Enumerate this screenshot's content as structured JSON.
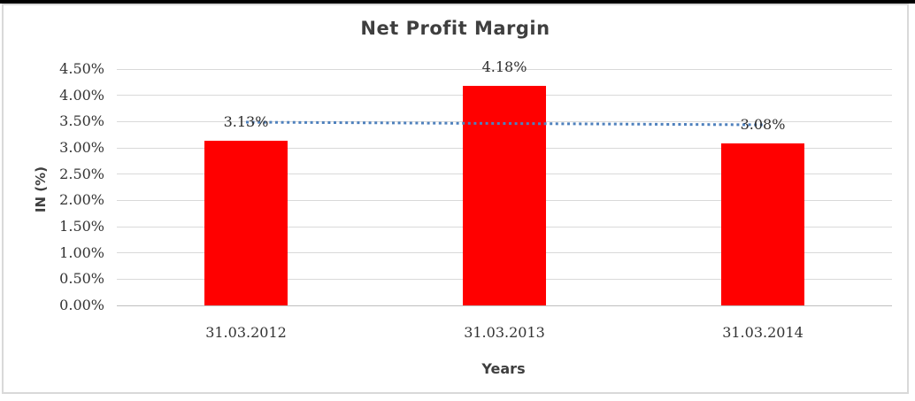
{
  "window": {
    "top_edge_color": "#000000",
    "chart_border_color": "#d9d9d9"
  },
  "chart_data": {
    "type": "bar",
    "title": "Net Profit Margin",
    "xlabel": "Years",
    "ylabel": "IN (%)",
    "categories": [
      "31.03.2012",
      "31.03.2013",
      "31.03.2014"
    ],
    "values": [
      3.13,
      4.18,
      3.08
    ],
    "data_labels": [
      "3.13%",
      "4.18%",
      "3.08%"
    ],
    "ytick_labels": [
      "0.00%",
      "0.50%",
      "1.00%",
      "1.50%",
      "2.00%",
      "2.50%",
      "3.00%",
      "3.50%",
      "4.00%",
      "4.50%"
    ],
    "ylim": [
      0,
      4.5
    ],
    "ytick_step": 0.5,
    "grid": true,
    "legend": "none",
    "bar_color": "#ff0000",
    "gridline_color": "#d9d9d9",
    "axis_line_color": "#bfbfbf",
    "trendline": {
      "type": "linear",
      "style": "dotted",
      "color": "#4f81bd",
      "series": "Net Profit Margin"
    }
  }
}
